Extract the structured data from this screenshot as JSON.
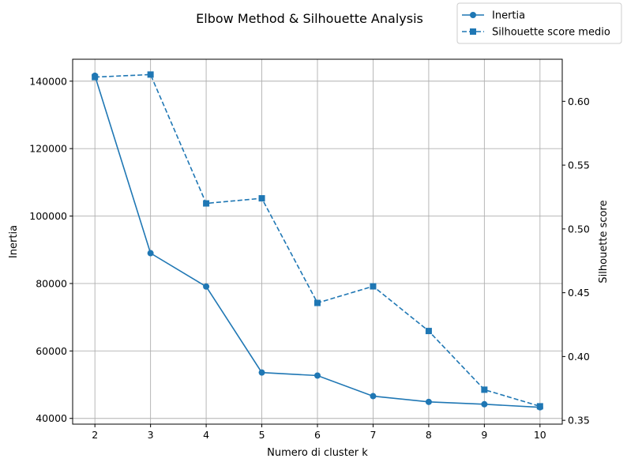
{
  "chart_data": {
    "type": "line",
    "title": "Elbow Method & Silhouette Analysis",
    "xlabel": "Numero di cluster k",
    "ylabel_left": "Inertia",
    "ylabel_right": "Silhouette score",
    "x": [
      2,
      3,
      4,
      5,
      6,
      7,
      8,
      9,
      10
    ],
    "x_ticks": [
      2,
      3,
      4,
      5,
      6,
      7,
      8,
      9,
      10
    ],
    "xlim": [
      1.6,
      10.4
    ],
    "ylim_left": [
      38300,
      146500
    ],
    "ylim_right": [
      0.347,
      0.633
    ],
    "y_ticks_left": [
      40000,
      60000,
      80000,
      100000,
      120000,
      140000
    ],
    "y_ticks_right": [
      "0.35",
      "0.40",
      "0.45",
      "0.50",
      "0.55",
      "0.60"
    ],
    "grid": true,
    "legend_position": "top-right",
    "series": [
      {
        "name": "Inertia",
        "axis": "left",
        "marker": "circle",
        "linestyle": "solid",
        "color": "#1f77b4",
        "values": [
          141600,
          89000,
          79100,
          53600,
          52700,
          46600,
          44900,
          44200,
          43300
        ]
      },
      {
        "name": "Silhouette score medio",
        "axis": "right",
        "marker": "square",
        "linestyle": "dashed",
        "color": "#1f77b4",
        "values": [
          0.619,
          0.621,
          0.52,
          0.524,
          0.442,
          0.455,
          0.42,
          0.374,
          0.361
        ]
      }
    ]
  }
}
